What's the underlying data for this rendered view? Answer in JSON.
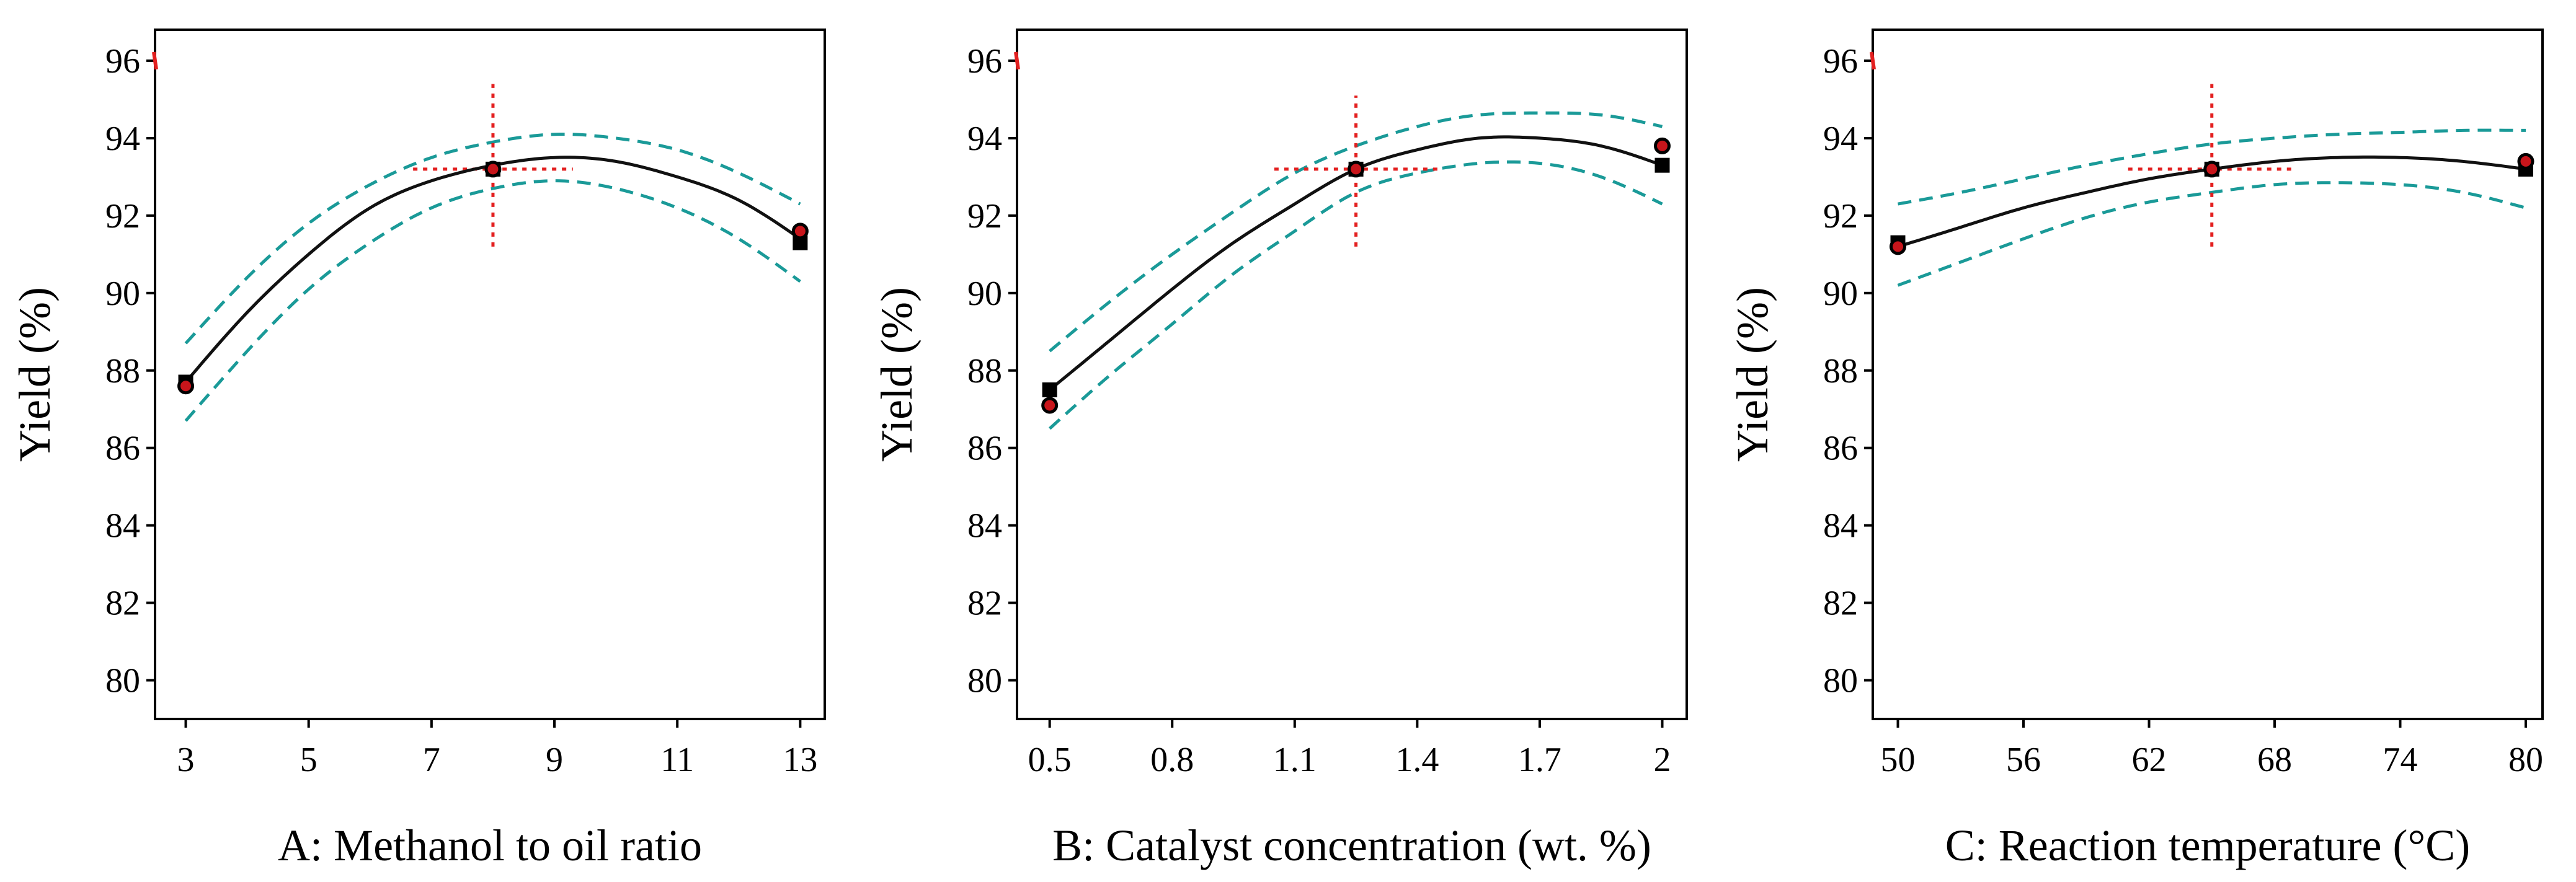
{
  "chart_data": [
    {
      "type": "line",
      "ylabel": "Yield (%)",
      "xlabel": "A: Methanol to oil ratio",
      "xlim": [
        2.5,
        13.4
      ],
      "ylim": [
        79.0,
        96.8
      ],
      "xticks": [
        3,
        5,
        7,
        9,
        11,
        13
      ],
      "xtick_labels": [
        "3",
        "5",
        "7",
        "9",
        "11",
        "13"
      ],
      "yticks": [
        80,
        82,
        84,
        86,
        88,
        90,
        92,
        94,
        96
      ],
      "ytick_labels": [
        "80",
        "82",
        "84",
        "86",
        "88",
        "90",
        "92",
        "94",
        "96"
      ],
      "fit": {
        "x": [
          3,
          4,
          5,
          6,
          7,
          8,
          9,
          10,
          11,
          12,
          13
        ],
        "y": [
          87.7,
          89.5,
          91.0,
          92.2,
          92.9,
          93.3,
          93.5,
          93.4,
          93.0,
          92.4,
          91.4
        ]
      },
      "ci_upper": {
        "x": [
          3,
          4,
          5,
          6,
          7,
          8,
          9,
          10,
          11,
          12,
          13
        ],
        "y": [
          88.7,
          90.4,
          91.8,
          92.8,
          93.5,
          93.9,
          94.1,
          94.0,
          93.7,
          93.1,
          92.3
        ]
      },
      "ci_lower": {
        "x": [
          3,
          4,
          5,
          6,
          7,
          8,
          9,
          10,
          11,
          12,
          13
        ],
        "y": [
          86.7,
          88.5,
          90.1,
          91.3,
          92.2,
          92.7,
          92.9,
          92.7,
          92.2,
          91.4,
          90.3
        ]
      },
      "actual_points": [
        {
          "x": 3,
          "y": 87.6
        },
        {
          "x": 8,
          "y": 93.2
        },
        {
          "x": 13,
          "y": 91.6
        }
      ],
      "predicted_points": [
        {
          "x": 3,
          "y": 87.7
        },
        {
          "x": 8,
          "y": 93.2
        },
        {
          "x": 13,
          "y": 91.3
        }
      ],
      "reference_point": {
        "x": 8,
        "y": 93.2,
        "x_span": [
          6.7,
          9.3
        ],
        "y_span": [
          91.2,
          95.4
        ]
      },
      "edge_marker_y": 96.0
    },
    {
      "type": "line",
      "ylabel": "Yield (%)",
      "xlabel": "B: Catalyst concentration (wt. %)",
      "xlim": [
        0.42,
        2.06
      ],
      "ylim": [
        79.0,
        96.8
      ],
      "xticks": [
        0.5,
        0.8,
        1.1,
        1.4,
        1.7,
        2.0
      ],
      "xtick_labels": [
        "0.5",
        "0.8",
        "1.1",
        "1.4",
        "1.7",
        "2"
      ],
      "yticks": [
        80,
        82,
        84,
        86,
        88,
        90,
        92,
        94,
        96
      ],
      "ytick_labels": [
        "80",
        "82",
        "84",
        "86",
        "88",
        "90",
        "92",
        "94",
        "96"
      ],
      "fit": {
        "x": [
          0.5,
          0.65,
          0.8,
          0.95,
          1.1,
          1.25,
          1.4,
          1.55,
          1.7,
          1.85,
          2.0
        ],
        "y": [
          87.5,
          88.8,
          90.1,
          91.3,
          92.3,
          93.2,
          93.7,
          94.0,
          94.0,
          93.8,
          93.3
        ]
      },
      "ci_upper": {
        "x": [
          0.5,
          0.65,
          0.8,
          0.95,
          1.1,
          1.25,
          1.4,
          1.55,
          1.7,
          1.85,
          2.0
        ],
        "y": [
          88.5,
          89.8,
          91.0,
          92.1,
          93.1,
          93.8,
          94.3,
          94.6,
          94.65,
          94.6,
          94.3
        ]
      },
      "ci_lower": {
        "x": [
          0.5,
          0.65,
          0.8,
          0.95,
          1.1,
          1.25,
          1.4,
          1.55,
          1.7,
          1.85,
          2.0
        ],
        "y": [
          86.5,
          87.9,
          89.2,
          90.5,
          91.6,
          92.6,
          93.1,
          93.35,
          93.35,
          93.0,
          92.3
        ]
      },
      "actual_points": [
        {
          "x": 0.5,
          "y": 87.1
        },
        {
          "x": 1.25,
          "y": 93.2
        },
        {
          "x": 2.0,
          "y": 93.8
        }
      ],
      "predicted_points": [
        {
          "x": 0.5,
          "y": 87.5
        },
        {
          "x": 1.25,
          "y": 93.2
        },
        {
          "x": 2.0,
          "y": 93.3
        }
      ],
      "reference_point": {
        "x": 1.25,
        "y": 93.2,
        "x_span": [
          1.05,
          1.45
        ],
        "y_span": [
          91.2,
          95.1
        ]
      },
      "edge_marker_y": 96.0
    },
    {
      "type": "line",
      "ylabel": "Yield (%)",
      "xlabel": "C: Reaction temperature (°C)",
      "xlim": [
        48.8,
        80.8
      ],
      "ylim": [
        79.0,
        96.8
      ],
      "xticks": [
        50,
        56,
        62,
        68,
        74,
        80
      ],
      "xtick_labels": [
        "50",
        "56",
        "62",
        "68",
        "74",
        "80"
      ],
      "yticks": [
        80,
        82,
        84,
        86,
        88,
        90,
        92,
        94,
        96
      ],
      "ytick_labels": [
        "80",
        "82",
        "84",
        "86",
        "88",
        "90",
        "92",
        "94",
        "96"
      ],
      "fit": {
        "x": [
          50,
          53,
          56,
          59,
          62,
          65,
          68,
          71,
          74,
          77,
          80
        ],
        "y": [
          91.2,
          91.7,
          92.2,
          92.6,
          92.95,
          93.2,
          93.4,
          93.5,
          93.5,
          93.4,
          93.2
        ]
      },
      "ci_upper": {
        "x": [
          50,
          53,
          56,
          59,
          62,
          65,
          68,
          71,
          74,
          77,
          80
        ],
        "y": [
          92.3,
          92.6,
          92.95,
          93.3,
          93.6,
          93.85,
          94.0,
          94.1,
          94.15,
          94.2,
          94.2
        ]
      },
      "ci_lower": {
        "x": [
          50,
          53,
          56,
          59,
          62,
          65,
          68,
          71,
          74,
          77,
          80
        ],
        "y": [
          90.2,
          90.8,
          91.4,
          91.95,
          92.35,
          92.6,
          92.8,
          92.85,
          92.8,
          92.6,
          92.2
        ]
      },
      "actual_points": [
        {
          "x": 50,
          "y": 91.2
        },
        {
          "x": 65,
          "y": 93.2
        },
        {
          "x": 80,
          "y": 93.4
        }
      ],
      "predicted_points": [
        {
          "x": 50,
          "y": 91.3
        },
        {
          "x": 65,
          "y": 93.2
        },
        {
          "x": 80,
          "y": 93.2
        }
      ],
      "reference_point": {
        "x": 65,
        "y": 93.2,
        "x_span": [
          61.0,
          69.0
        ],
        "y_span": [
          91.2,
          95.4
        ]
      },
      "edge_marker_y": 96.0
    }
  ],
  "colors": {
    "fit": "#111111",
    "confidence_band": "#1a9a98",
    "reference": "#e32020",
    "actual_point": "#c8151b",
    "predicted_point": "#000000"
  }
}
